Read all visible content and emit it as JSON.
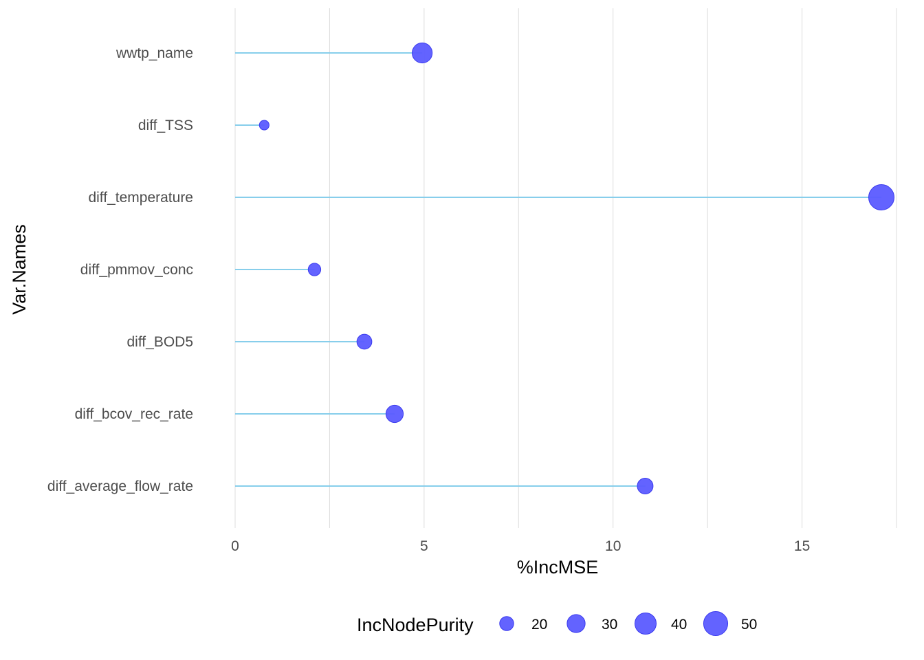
{
  "chart_data": {
    "type": "lollipop",
    "title": "",
    "xlabel": "%IncMSE",
    "ylabel": "Var.Names",
    "xlim": [
      0,
      17.5
    ],
    "x_ticks": [
      0,
      5,
      10,
      15
    ],
    "x_tick_labels": [
      "0",
      "5",
      "10",
      "15"
    ],
    "grid": "vertical",
    "categories": [
      "wwtp_name",
      "diff_TSS",
      "diff_temperature",
      "diff_pmmov_conc",
      "diff_BOD5",
      "diff_bcov_rec_rate",
      "diff_average_flow_rate"
    ],
    "values": [
      4.95,
      0.77,
      17.1,
      2.1,
      3.42,
      4.22,
      10.85
    ],
    "size_values": [
      36,
      12,
      55,
      17,
      22,
      28,
      24
    ],
    "size_variable": "IncNodePurity",
    "legend": {
      "title": "IncNodePurity",
      "position": "bottom",
      "breaks": [
        20,
        30,
        40,
        50
      ],
      "labels": [
        "20",
        "30",
        "40",
        "50"
      ]
    }
  },
  "colors": {
    "segment": "#87ceeb",
    "point": "#5b5bff",
    "point_stroke": "#3a3aee",
    "grid": "#dcdcdc",
    "tick_text": "#4d4d4d",
    "title_text": "#000000"
  }
}
